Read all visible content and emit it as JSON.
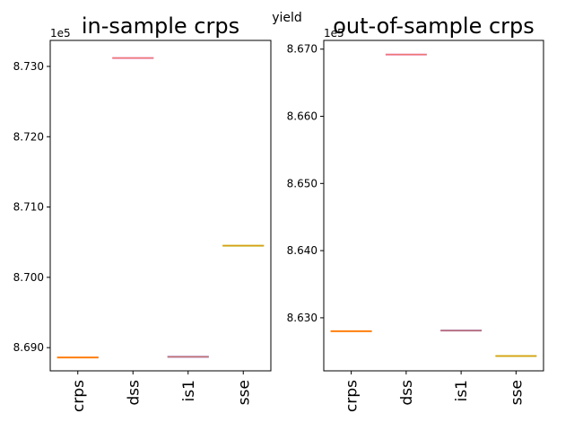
{
  "suptitle": "yield",
  "chart_data": [
    {
      "type": "box",
      "title": "in-sample crps",
      "categories": [
        "crps",
        "dss",
        "is1",
        "sse"
      ],
      "values": [
        8.6886,
        8.7312,
        8.6887,
        8.7045
      ],
      "yticks": [
        "8.690",
        "8.700",
        "8.710",
        "8.720",
        "8.730"
      ],
      "ytick_values": [
        8.69,
        8.7,
        8.71,
        8.72,
        8.73
      ],
      "ylim": [
        8.6867,
        8.7337
      ],
      "offset_text": "1e5",
      "colors": [
        "#ff7f0e",
        "#e377c2",
        "#9467bd",
        "#bcbd22"
      ]
    },
    {
      "type": "box",
      "title": "out-of-sample crps",
      "categories": [
        "crps",
        "dss",
        "is1",
        "sse"
      ],
      "values": [
        8.628,
        8.6692,
        8.6281,
        8.6243
      ],
      "yticks": [
        "8.630",
        "8.640",
        "8.650",
        "8.660",
        "8.670"
      ],
      "ytick_values": [
        8.63,
        8.64,
        8.65,
        8.66,
        8.67
      ],
      "ylim": [
        8.6221,
        8.6713
      ],
      "offset_text": "1e5",
      "colors": [
        "#ff7f0e",
        "#e377c2",
        "#9467bd",
        "#bcbd22"
      ]
    }
  ]
}
